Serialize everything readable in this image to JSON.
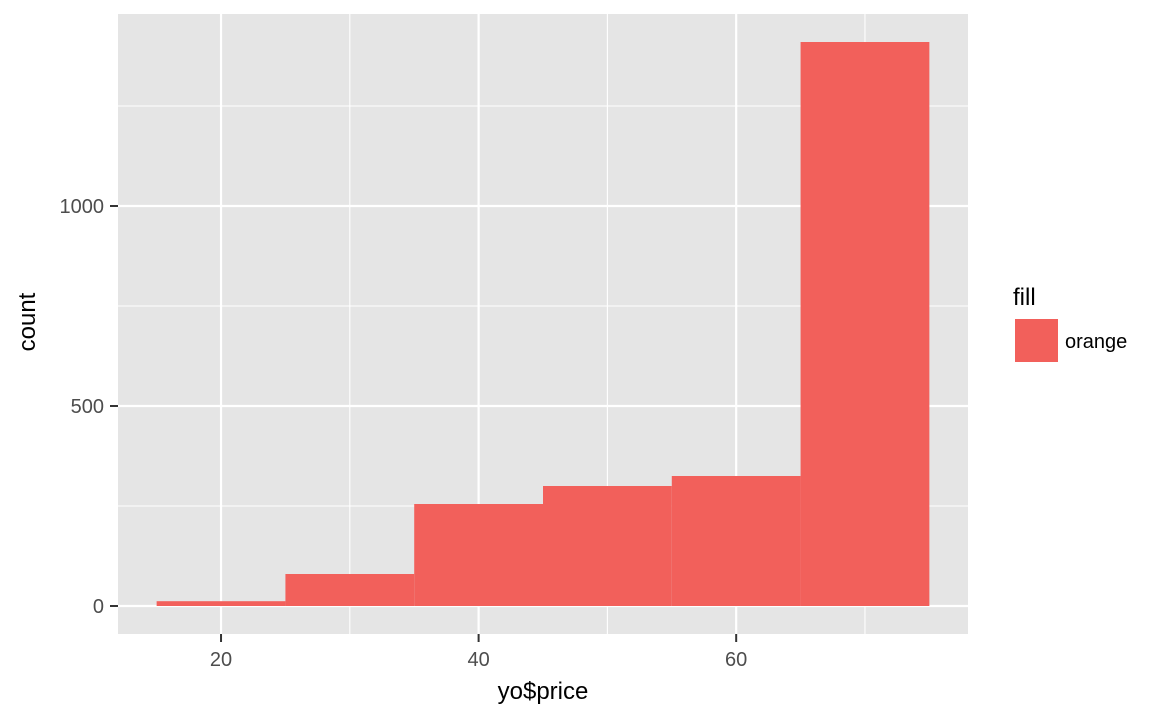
{
  "chart_data": {
    "type": "bar",
    "subtype": "histogram",
    "x": [
      20,
      30,
      40,
      50,
      60,
      70
    ],
    "bin_width": 10,
    "values": [
      12,
      80,
      255,
      300,
      325,
      1410
    ],
    "xlabel": "yo$price",
    "ylabel": "count",
    "xlim": [
      12,
      78
    ],
    "ylim": [
      -70,
      1480
    ],
    "x_ticks": [
      20,
      40,
      60
    ],
    "x_tick_labels": [
      "20",
      "40",
      "60"
    ],
    "y_ticks": [
      0,
      500,
      1000
    ],
    "y_tick_labels": [
      "0",
      "500",
      "1000"
    ],
    "x_minor_ticks": [
      30,
      50,
      70
    ],
    "y_minor_ticks": [
      250,
      750,
      1250
    ],
    "grid": true,
    "legend": {
      "title": "fill",
      "placement": "right",
      "entries": [
        {
          "label": "orange",
          "color": "#F8766D"
        }
      ]
    },
    "colors": {
      "bar": "#F2605B",
      "panel": "#E5E5E5",
      "grid": "#FFFFFF"
    }
  }
}
